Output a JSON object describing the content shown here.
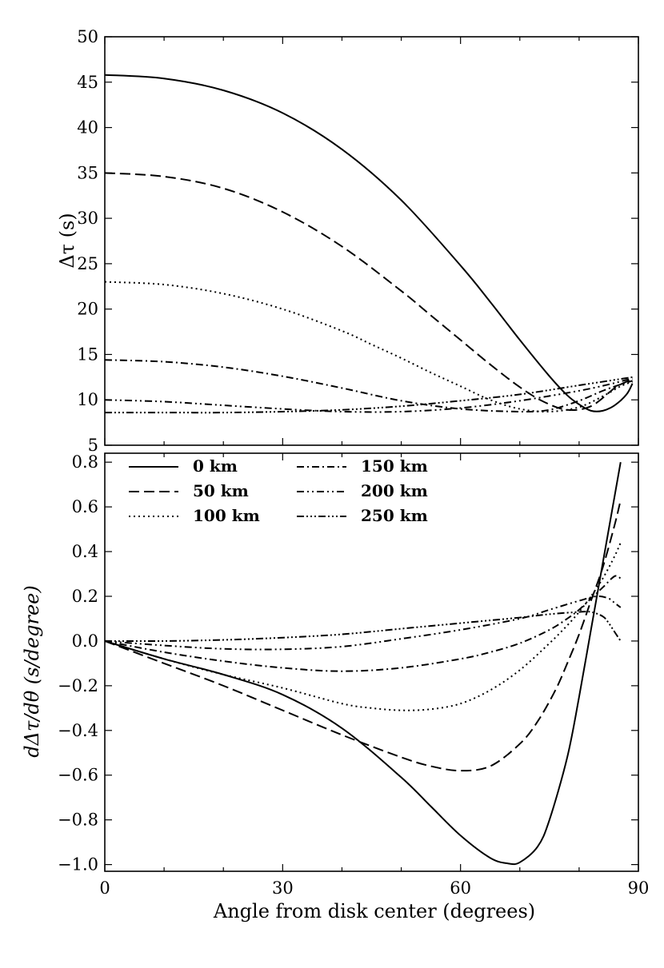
{
  "chart_data": [
    {
      "type": "line",
      "title": "",
      "xlabel": "",
      "ylabel": "Δτ (s)",
      "xlim": [
        0,
        90
      ],
      "ylim": [
        5,
        50
      ],
      "x_ticks": [
        0,
        30,
        60,
        90
      ],
      "y_ticks": [
        5,
        10,
        15,
        20,
        25,
        30,
        35,
        40,
        45,
        50
      ],
      "y_tick_labels": [
        "5",
        "10",
        "15",
        "20",
        "25",
        "30",
        "35",
        "40",
        "45",
        "50"
      ],
      "grid": false,
      "series": [
        {
          "name": "0 km",
          "style": "solid",
          "x": [
            0,
            10,
            20,
            30,
            40,
            50,
            60,
            65,
            70,
            75,
            78,
            80,
            82,
            84,
            86,
            88,
            89
          ],
          "y": [
            45.8,
            45.4,
            44.1,
            41.6,
            37.6,
            32.0,
            24.8,
            20.8,
            16.6,
            12.6,
            10.5,
            9.5,
            8.8,
            8.8,
            9.4,
            10.6,
            11.8
          ]
        },
        {
          "name": "50 km",
          "style": "dashed",
          "x": [
            0,
            10,
            20,
            30,
            40,
            50,
            55,
            60,
            65,
            70,
            74,
            78,
            82,
            86,
            88,
            89
          ],
          "y": [
            35.0,
            34.6,
            33.3,
            30.7,
            26.9,
            22.0,
            19.3,
            16.6,
            13.9,
            11.4,
            9.8,
            8.9,
            9.3,
            11.3,
            12.0,
            12.2
          ]
        },
        {
          "name": "100 km",
          "style": "dotted",
          "x": [
            0,
            10,
            20,
            30,
            40,
            45,
            50,
            55,
            60,
            65,
            70,
            75,
            80,
            84,
            87,
            89
          ],
          "y": [
            23.0,
            22.7,
            21.7,
            20.0,
            17.6,
            16.1,
            14.6,
            13.0,
            11.5,
            10.0,
            9.0,
            8.7,
            9.2,
            10.4,
            11.5,
            12.0
          ]
        },
        {
          "name": "150 km",
          "style": "dashdot",
          "x": [
            0,
            10,
            20,
            30,
            40,
            50,
            60,
            70,
            75,
            80,
            84,
            87,
            89
          ],
          "y": [
            14.4,
            14.2,
            13.6,
            12.6,
            11.3,
            9.9,
            9.0,
            8.7,
            8.9,
            9.9,
            11.0,
            11.7,
            12.1
          ]
        },
        {
          "name": "200 km",
          "style": "dashdotdot",
          "x": [
            0,
            10,
            20,
            30,
            40,
            50,
            60,
            70,
            80,
            85,
            88,
            89
          ],
          "y": [
            10.0,
            9.8,
            9.4,
            9.0,
            8.7,
            8.7,
            9.1,
            9.9,
            11.0,
            11.7,
            12.2,
            12.3
          ]
        },
        {
          "name": "250 km",
          "style": "dashdotdotdot",
          "x": [
            0,
            10,
            20,
            30,
            40,
            50,
            60,
            70,
            80,
            85,
            87,
            89
          ],
          "y": [
            8.6,
            8.6,
            8.6,
            8.7,
            8.9,
            9.3,
            9.9,
            10.6,
            11.6,
            12.1,
            12.3,
            12.5
          ]
        }
      ]
    },
    {
      "type": "line",
      "title": "",
      "xlabel": "Angle from disk center (degrees)",
      "ylabel": "dΔτ/dθ (s/degree)",
      "xlim": [
        0,
        90
      ],
      "ylim": [
        -1.03,
        0.84
      ],
      "x_ticks": [
        0,
        30,
        60,
        90
      ],
      "x_tick_labels": [
        "0",
        "30",
        "60",
        "90"
      ],
      "y_ticks": [
        -1.0,
        -0.8,
        -0.6,
        -0.4,
        -0.2,
        0.0,
        0.2,
        0.4,
        0.6,
        0.8
      ],
      "y_tick_labels": [
        "−1.0",
        "−0.8",
        "−0.6",
        "−0.4",
        "−0.2",
        "0.0",
        "0.2",
        "0.4",
        "0.6",
        "0.8"
      ],
      "grid": false,
      "legend": {
        "placement": "top-left",
        "columns": 2,
        "entries": [
          "0 km",
          "50 km",
          "100 km",
          "150 km",
          "200 km",
          "250 km"
        ]
      },
      "series": [
        {
          "name": "0 km",
          "style": "solid",
          "x": [
            0,
            10,
            20,
            30,
            40,
            50,
            55,
            60,
            65,
            68,
            70,
            73,
            75,
            78,
            80,
            82,
            84,
            86,
            87
          ],
          "y": [
            0.0,
            -0.08,
            -0.15,
            -0.24,
            -0.39,
            -0.61,
            -0.74,
            -0.87,
            -0.97,
            -0.995,
            -0.99,
            -0.92,
            -0.8,
            -0.52,
            -0.25,
            0.05,
            0.35,
            0.65,
            0.8
          ]
        },
        {
          "name": "50 km",
          "style": "dashed",
          "x": [
            0,
            10,
            20,
            30,
            40,
            50,
            55,
            60,
            65,
            70,
            73,
            76,
            78,
            80,
            82,
            84,
            86,
            87
          ],
          "y": [
            0.0,
            -0.1,
            -0.2,
            -0.31,
            -0.42,
            -0.52,
            -0.56,
            -0.58,
            -0.56,
            -0.46,
            -0.36,
            -0.22,
            -0.1,
            0.03,
            0.18,
            0.33,
            0.52,
            0.63
          ]
        },
        {
          "name": "100 km",
          "style": "dotted",
          "x": [
            0,
            10,
            20,
            30,
            40,
            45,
            50,
            55,
            60,
            65,
            70,
            75,
            78,
            80,
            82,
            84,
            86,
            87
          ],
          "y": [
            0.0,
            -0.08,
            -0.15,
            -0.21,
            -0.28,
            -0.3,
            -0.31,
            -0.305,
            -0.28,
            -0.22,
            -0.13,
            -0.01,
            0.07,
            0.13,
            0.2,
            0.28,
            0.38,
            0.44
          ]
        },
        {
          "name": "150 km",
          "style": "dashdot",
          "x": [
            0,
            10,
            20,
            30,
            40,
            50,
            60,
            65,
            70,
            75,
            78,
            80,
            82,
            84,
            86,
            87
          ],
          "y": [
            0.0,
            -0.05,
            -0.09,
            -0.12,
            -0.135,
            -0.12,
            -0.08,
            -0.05,
            -0.01,
            0.05,
            0.1,
            0.14,
            0.19,
            0.24,
            0.29,
            0.28
          ]
        },
        {
          "name": "200 km",
          "style": "dashdotdot",
          "x": [
            0,
            10,
            20,
            30,
            40,
            50,
            60,
            70,
            75,
            80,
            83,
            85,
            86,
            87
          ],
          "y": [
            0.0,
            -0.02,
            -0.035,
            -0.037,
            -0.025,
            0.01,
            0.05,
            0.1,
            0.14,
            0.18,
            0.2,
            0.19,
            0.17,
            0.15
          ]
        },
        {
          "name": "250 km",
          "style": "dashdotdotdot",
          "x": [
            0,
            10,
            20,
            30,
            40,
            50,
            60,
            70,
            75,
            80,
            82,
            84,
            85,
            86,
            87
          ],
          "y": [
            0.0,
            0.0,
            0.005,
            0.015,
            0.03,
            0.055,
            0.08,
            0.105,
            0.12,
            0.13,
            0.13,
            0.11,
            0.08,
            0.04,
            0.0
          ]
        }
      ]
    }
  ]
}
